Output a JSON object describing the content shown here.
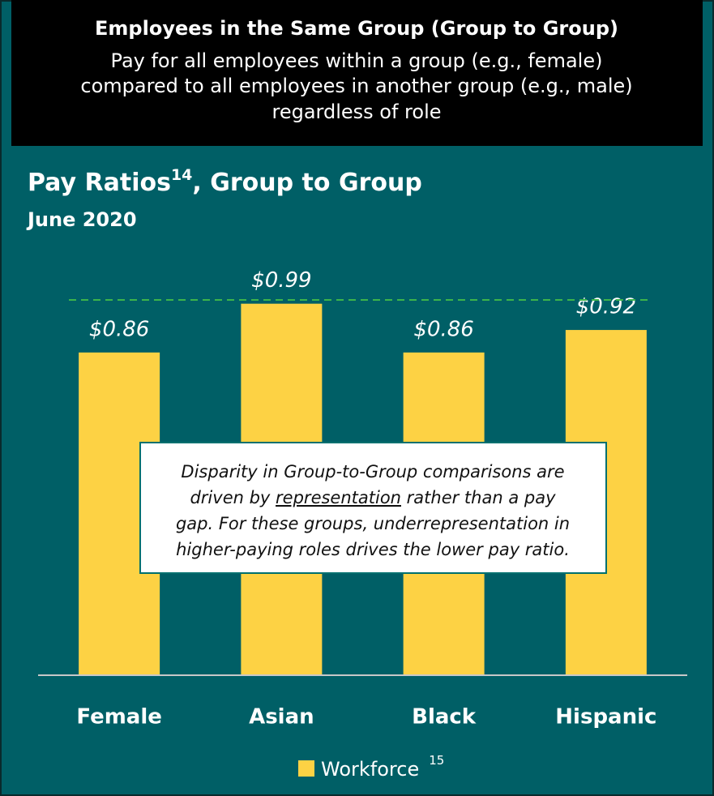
{
  "header": {
    "title": "Employees in the Same Group (Group to Group)",
    "lines": [
      "Pay for all employees within a group (e.g., female)",
      "compared to all employees in another group (e.g., male)",
      "regardless of role"
    ]
  },
  "chart_data": {
    "type": "bar",
    "title": "Pay Ratios",
    "title_note": "14",
    "title_rest": ", Group to Group",
    "subtitle": "June 2020",
    "categories": [
      "Female",
      "Asian",
      "Black",
      "Hispanic"
    ],
    "series": [
      {
        "name": "Workforce",
        "name_note": "15",
        "color": "#fdd244",
        "values": [
          0.86,
          0.99,
          0.86,
          0.92
        ],
        "value_labels": [
          "$0.86",
          "$0.99",
          "$0.86",
          "$0.92"
        ]
      }
    ],
    "ylim": [
      0,
      1.08
    ],
    "reference_line": {
      "value": 1.0,
      "color": "#3cb44b"
    },
    "annotation": {
      "lines": [
        [
          "Disparity in Group-to-Group comparisons are"
        ],
        [
          "driven by ",
          "representation",
          " rather than a pay"
        ],
        [
          "gap. For these groups, underrepresentation in"
        ],
        [
          "higher-paying roles drives the lower pay ratio."
        ]
      ],
      "underline": [
        1,
        1
      ]
    },
    "legend": "bottom"
  }
}
